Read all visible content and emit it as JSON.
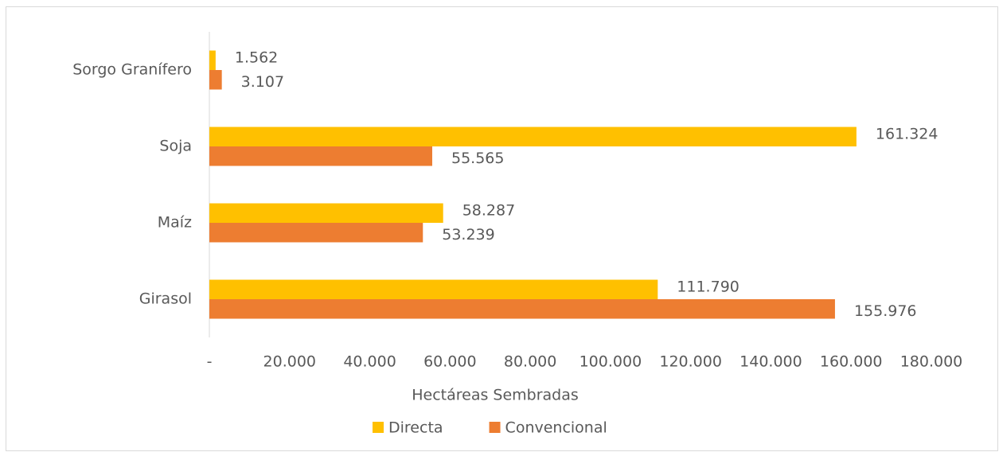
{
  "chart_data": {
    "type": "bar",
    "orientation": "horizontal",
    "x_label": "Hectáreas Sembradas",
    "categories": [
      "Sorgo Granífero",
      "Soja",
      "Maíz",
      "Girasol"
    ],
    "series": [
      {
        "name": "Directa",
        "color": "#FFC000",
        "values": [
          1562,
          161324,
          58287,
          111790
        ],
        "value_labels": [
          "1.562",
          "161.324",
          "58.287",
          "111.790"
        ]
      },
      {
        "name": "Convencional",
        "color": "#ED7D31",
        "values": [
          3107,
          55565,
          53239,
          155976
        ],
        "value_labels": [
          "3.107",
          "55.565",
          "53.239",
          "155.976"
        ]
      }
    ],
    "xlim": [
      0,
      180000
    ],
    "xticks": [
      {
        "value": 0,
        "label": "-"
      },
      {
        "value": 20000,
        "label": "20.000"
      },
      {
        "value": 40000,
        "label": "40.000"
      },
      {
        "value": 60000,
        "label": "60.000"
      },
      {
        "value": 80000,
        "label": "80.000"
      },
      {
        "value": 100000,
        "label": "100.000"
      },
      {
        "value": 120000,
        "label": "120.000"
      },
      {
        "value": 140000,
        "label": "140.000"
      },
      {
        "value": 160000,
        "label": "160.000"
      },
      {
        "value": 180000,
        "label": "180.000"
      }
    ],
    "legend": "bottom",
    "grid": false
  }
}
